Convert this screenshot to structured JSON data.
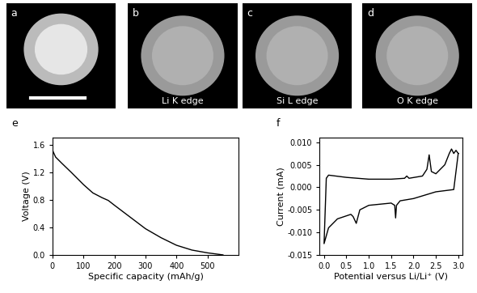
{
  "images": [
    {
      "panel_label": "a"
    },
    {
      "panel_label": "b",
      "caption": "Li K edge"
    },
    {
      "panel_label": "c",
      "caption": "Si L edge"
    },
    {
      "panel_label": "d",
      "caption": "O K edge"
    }
  ],
  "chart_data": [
    {
      "panel_label": "e",
      "type": "line",
      "color": "#000000",
      "xlabel": "Specific capacity (mAh/g)",
      "ylabel": "Voltage (V)",
      "x": [
        0,
        10,
        30,
        60,
        100,
        130,
        160,
        180,
        200,
        250,
        300,
        350,
        400,
        450,
        500,
        550
      ],
      "values": [
        1.52,
        1.42,
        1.33,
        1.2,
        1.02,
        0.9,
        0.83,
        0.79,
        0.72,
        0.55,
        0.38,
        0.25,
        0.14,
        0.07,
        0.03,
        0.0
      ],
      "xlim": [
        0,
        600
      ],
      "xticks": [
        0,
        100,
        200,
        300,
        400,
        500
      ],
      "ylim": [
        0,
        1.7
      ],
      "yticks": [
        0.0,
        0.4,
        0.8,
        1.2,
        1.6
      ]
    },
    {
      "panel_label": "f",
      "type": "line",
      "color": "#000000",
      "xlabel": "Potential versus Li/Li⁺ (V)",
      "ylabel": "Current (mA)",
      "x": [
        3.0,
        2.9,
        2.5,
        2.0,
        1.7,
        1.62,
        1.6,
        1.58,
        1.5,
        1.0,
        0.8,
        0.72,
        0.65,
        0.6,
        0.3,
        0.1,
        0.0,
        0.0,
        0.05,
        0.1,
        0.5,
        1.0,
        1.5,
        1.8,
        1.85,
        1.9,
        2.2,
        2.3,
        2.35,
        2.4,
        2.5,
        2.7,
        2.8,
        2.85,
        2.9,
        2.95,
        3.0
      ],
      "values": [
        0.0075,
        -0.0005,
        -0.001,
        -0.0025,
        -0.003,
        -0.004,
        -0.0068,
        -0.004,
        -0.0035,
        -0.004,
        -0.005,
        -0.008,
        -0.0065,
        -0.006,
        -0.007,
        -0.009,
        -0.0125,
        -0.0125,
        0.002,
        0.0027,
        0.0022,
        0.0018,
        0.0018,
        0.002,
        0.0025,
        0.002,
        0.0025,
        0.004,
        0.0072,
        0.0035,
        0.003,
        0.005,
        0.0075,
        0.0085,
        0.0075,
        0.0082,
        0.0075
      ],
      "xlim": [
        -0.1,
        3.1
      ],
      "xticks": [
        0.0,
        0.5,
        1.0,
        1.5,
        2.0,
        2.5,
        3.0
      ],
      "ylim": [
        -0.015,
        0.011
      ],
      "yticks": [
        {
          "value": -0.015,
          "label": "-0.015"
        },
        {
          "value": -0.01,
          "label": "-0.010"
        },
        {
          "value": -0.005,
          "label": "-0.005"
        },
        {
          "value": 0.0,
          "label": "0.000"
        },
        {
          "value": 0.005,
          "label": "0.005"
        },
        {
          "value": 0.01,
          "label": "0.010"
        }
      ]
    }
  ]
}
